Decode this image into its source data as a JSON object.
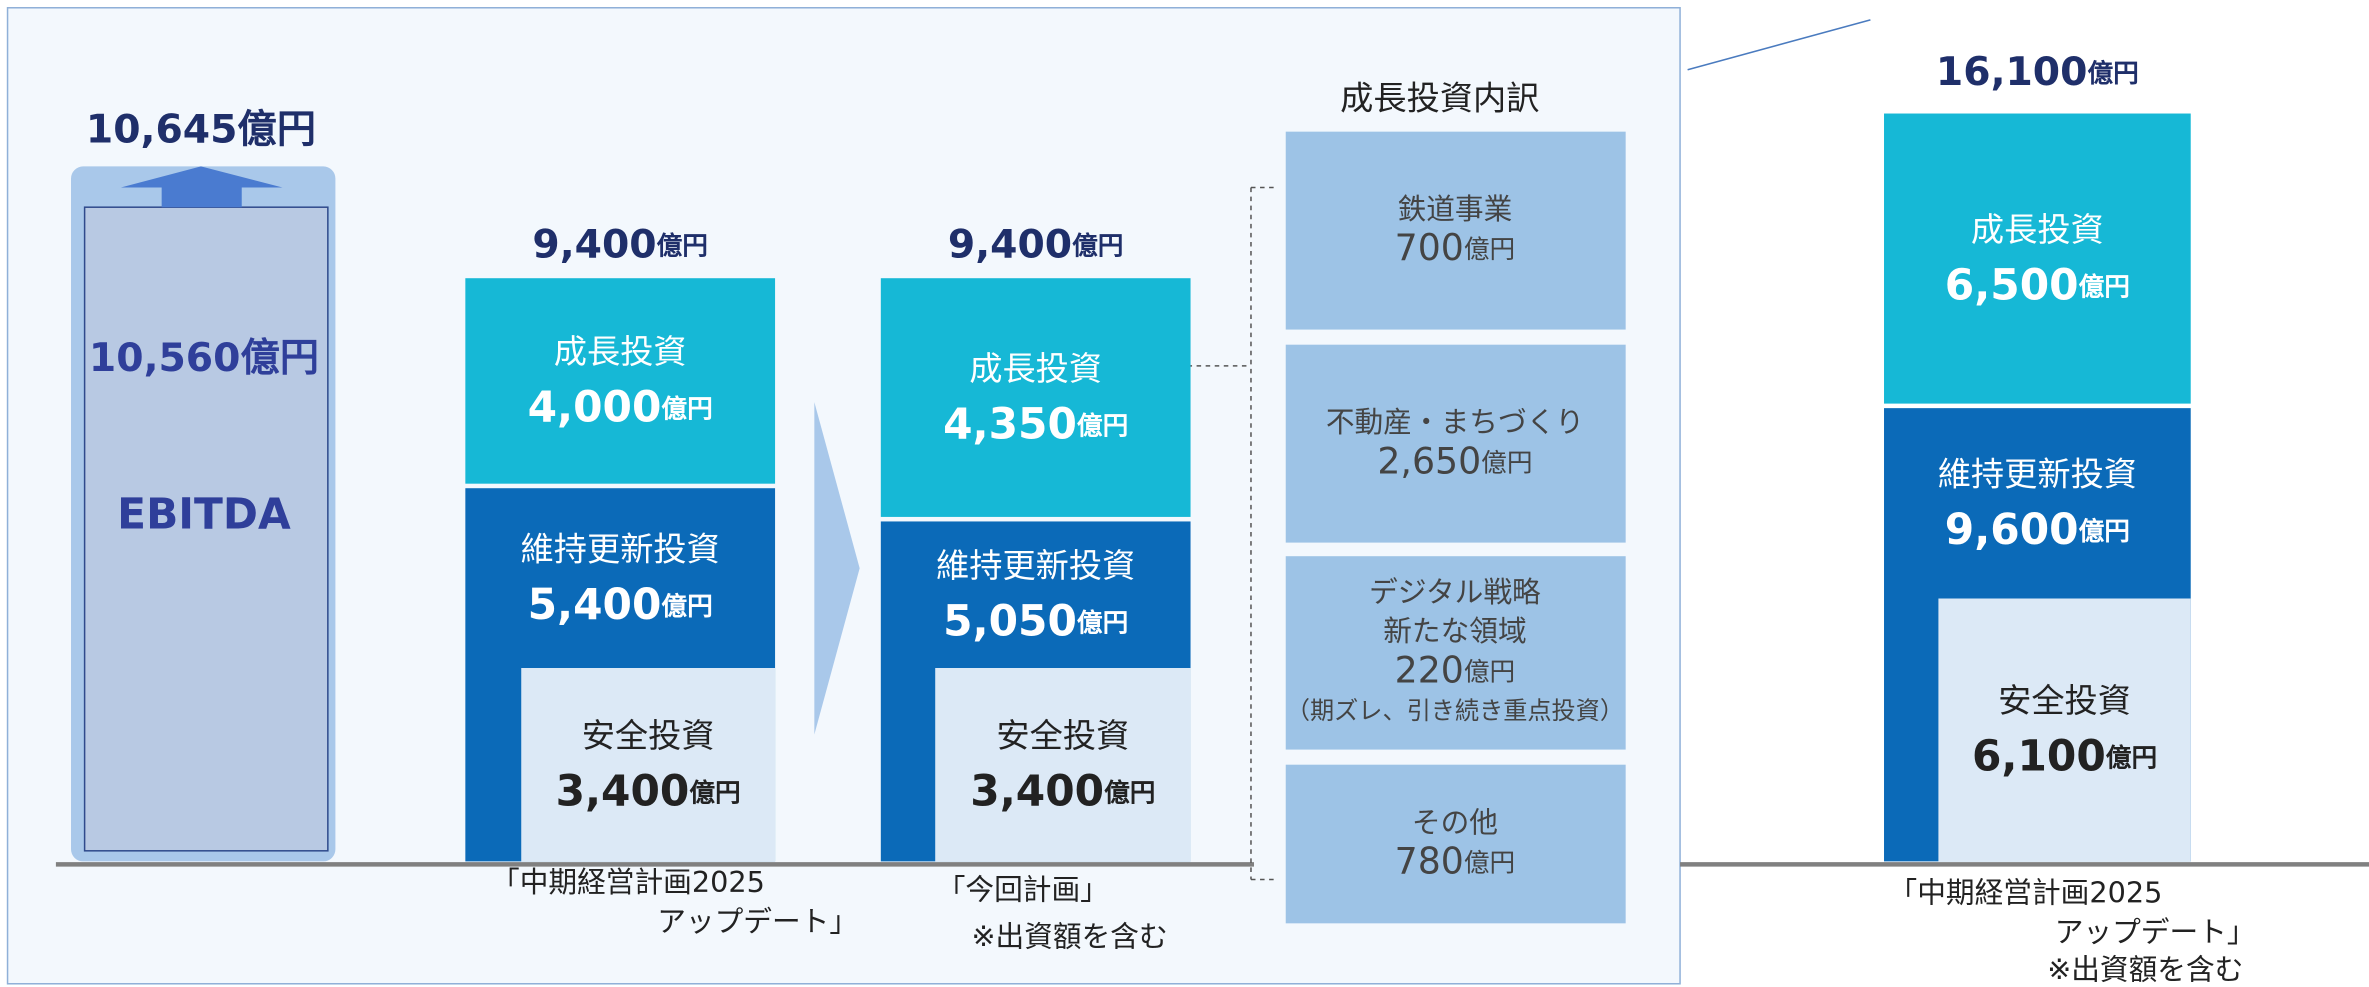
{
  "ebitda": {
    "top_amount": "10,645",
    "top_unit": "億円",
    "amount": "10,560",
    "unit": "億円",
    "label": "EBITDA"
  },
  "plans": [
    {
      "caption_lines": [
        "「中期経営計画2025",
        "アップデート」"
      ],
      "total": {
        "amount": "9,400",
        "unit": "億円"
      },
      "segments": [
        {
          "label": "成長投資",
          "amount": "4,000",
          "unit": "億円"
        },
        {
          "label": "維持更新投資",
          "amount": "5,400",
          "unit": "億円"
        },
        {
          "label": "安全投資",
          "amount": "3,400",
          "unit": "億円"
        }
      ]
    },
    {
      "caption_lines": [
        "「今回計画」"
      ],
      "note": "※出資額を含む",
      "total": {
        "amount": "9,400",
        "unit": "億円"
      },
      "segments": [
        {
          "label": "成長投資",
          "amount": "4,350",
          "unit": "億円"
        },
        {
          "label": "維持更新投資",
          "amount": "5,050",
          "unit": "億円"
        },
        {
          "label": "安全投資",
          "amount": "3,400",
          "unit": "億円"
        }
      ]
    },
    {
      "caption_lines": [
        "「中期経営計画2025",
        "アップデート」"
      ],
      "note": "※出資額を含む",
      "total": {
        "amount": "16,100",
        "unit": "億円"
      },
      "segments": [
        {
          "label": "成長投資",
          "amount": "6,500",
          "unit": "億円"
        },
        {
          "label": "維持更新投資",
          "amount": "9,600",
          "unit": "億円"
        },
        {
          "label": "安全投資",
          "amount": "6,100",
          "unit": "億円"
        }
      ]
    }
  ],
  "breakdown": {
    "title": "成長投資内訳",
    "items": [
      {
        "label_lines": [
          "鉄道事業"
        ],
        "amount": "700",
        "unit": "億円"
      },
      {
        "label_lines": [
          "不動産・まちづくり"
        ],
        "amount": "2,650",
        "unit": "億円"
      },
      {
        "label_lines": [
          "デジタル戦略",
          "新たな領域"
        ],
        "amount": "220",
        "unit": "億円",
        "note": "（期ズレ、引き続き重点投資）"
      },
      {
        "label_lines": [
          "その他"
        ],
        "amount": "780",
        "unit": "億円"
      }
    ]
  }
}
